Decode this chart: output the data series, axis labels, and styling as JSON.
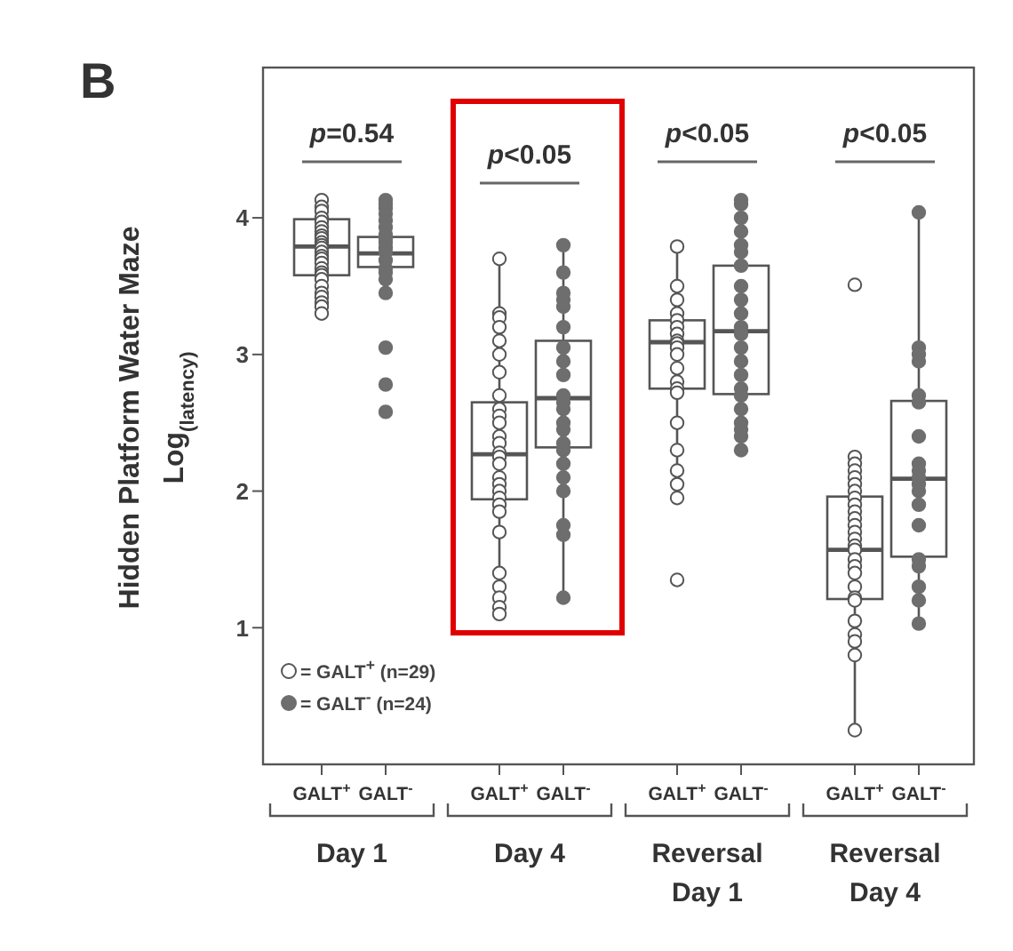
{
  "chart_data": {
    "type": "box",
    "title": "B",
    "ylabel": "Hidden Platform Water Maze Log$_{(latency)}$",
    "categories": [
      "Day 1",
      "Day 4",
      "Reversal Day 1",
      "Reversal Day 4"
    ],
    "ylim": [
      0,
      5.1
    ],
    "yticks": [
      1,
      2,
      3,
      4
    ],
    "legend": "bottom left",
    "marker": "circle",
    "series": [
      {
        "type": "box",
        "color": "#555555",
        "boxes": [
          {
            "low": 3.3,
            "q1": 3.58,
            "median": 3.79,
            "q3": 3.99,
            "high": 4.13
          },
          {
            "low": 1.1,
            "q1": 1.94,
            "median": 2.27,
            "q3": 2.65,
            "high": 3.7
          },
          {
            "low": 1.95,
            "q1": 2.75,
            "median": 3.09,
            "q3": 3.25,
            "high": 3.79
          },
          {
            "low": 0.25,
            "q1": 1.21,
            "median": 1.57,
            "q3": 1.96,
            "high": 2.25
          }
        ]
      },
      {
        "type": "box",
        "color": "#555555",
        "boxes": [
          {
            "low": 3.45,
            "q1": 3.64,
            "median": 3.74,
            "q3": 3.86,
            "high": 4.13
          },
          {
            "low": 1.22,
            "q1": 2.32,
            "median": 2.68,
            "q3": 3.1,
            "high": 3.8
          },
          {
            "low": 2.3,
            "q1": 2.71,
            "median": 3.17,
            "q3": 3.65,
            "high": 4.13
          },
          {
            "low": 1.03,
            "q1": 1.52,
            "median": 2.09,
            "q3": 2.66,
            "high": 4.04
          }
        ]
      },
      {
        "type": "scatter",
        "name": "= GALT$^{+}$ (n=29)",
        "color": "#ffffff",
        "x": [
          "Day 1",
          "Day 1",
          "Day 1",
          "Day 1",
          "Day 1",
          "Day 1",
          "Day 1",
          "Day 1",
          "Day 1",
          "Day 1",
          "Day 1",
          "Day 1",
          "Day 1",
          "Day 1",
          "Day 1",
          "Day 1",
          "Day 1",
          "Day 1",
          "Day 1",
          "Day 1",
          "Day 1",
          "Day 1",
          "Day 1",
          "Day 1",
          "Day 1",
          "Day 1",
          "Day 4",
          "Day 4",
          "Day 4",
          "Day 4",
          "Day 4",
          "Day 4",
          "Day 4",
          "Day 4",
          "Day 4",
          "Day 4",
          "Day 4",
          "Day 4",
          "Day 4",
          "Day 4",
          "Day 4",
          "Day 4",
          "Day 4",
          "Day 4",
          "Day 4",
          "Day 4",
          "Day 4",
          "Day 4",
          "Day 4",
          "Day 4",
          "Day 4",
          "Day 4",
          "Day 4",
          "Day 4",
          "Reversal Day 1",
          "Reversal Day 1",
          "Reversal Day 1",
          "Reversal Day 1",
          "Reversal Day 1",
          "Reversal Day 1",
          "Reversal Day 1",
          "Reversal Day 1",
          "Reversal Day 1",
          "Reversal Day 1",
          "Reversal Day 1",
          "Reversal Day 1",
          "Reversal Day 1",
          "Reversal Day 1",
          "Reversal Day 1",
          "Reversal Day 1",
          "Reversal Day 1",
          "Reversal Day 1",
          "Reversal Day 1",
          "Reversal Day 1",
          "Reversal Day 1",
          "Reversal Day 4",
          "Reversal Day 4",
          "Reversal Day 4",
          "Reversal Day 4",
          "Reversal Day 4",
          "Reversal Day 4",
          "Reversal Day 4",
          "Reversal Day 4",
          "Reversal Day 4",
          "Reversal Day 4",
          "Reversal Day 4",
          "Reversal Day 4",
          "Reversal Day 4",
          "Reversal Day 4",
          "Reversal Day 4",
          "Reversal Day 4",
          "Reversal Day 4",
          "Reversal Day 4",
          "Reversal Day 4",
          "Reversal Day 4",
          "Reversal Day 4",
          "Reversal Day 4",
          "Reversal Day 4",
          "Reversal Day 4",
          "Reversal Day 4",
          "Reversal Day 4",
          "Reversal Day 4"
        ],
        "values": [
          4.13,
          4.08,
          4.05,
          4.0,
          3.97,
          3.93,
          3.9,
          3.87,
          3.85,
          3.82,
          3.8,
          3.78,
          3.75,
          3.72,
          3.7,
          3.67,
          3.63,
          3.6,
          3.58,
          3.55,
          3.5,
          3.45,
          3.42,
          3.38,
          3.35,
          3.3,
          3.7,
          3.3,
          3.27,
          3.2,
          3.1,
          3.0,
          2.87,
          2.7,
          2.6,
          2.55,
          2.5,
          2.4,
          2.35,
          2.28,
          2.25,
          2.2,
          2.1,
          2.05,
          2.0,
          1.95,
          1.9,
          1.85,
          1.7,
          1.4,
          1.3,
          1.22,
          1.15,
          1.1,
          3.79,
          3.5,
          3.4,
          3.3,
          3.25,
          3.2,
          3.15,
          3.1,
          3.08,
          3.05,
          3.0,
          2.9,
          2.8,
          2.75,
          2.72,
          2.5,
          2.3,
          2.15,
          2.05,
          1.95,
          1.35,
          3.51,
          2.25,
          2.2,
          2.15,
          2.1,
          2.05,
          2.0,
          1.95,
          1.9,
          1.85,
          1.8,
          1.75,
          1.7,
          1.65,
          1.6,
          1.57,
          1.5,
          1.45,
          1.4,
          1.3,
          1.22,
          1.2,
          1.05,
          0.95,
          0.9,
          0.8,
          0.25
        ]
      },
      {
        "type": "scatter",
        "name": "= GALT$^{-}$ (n=24)",
        "color": "#6e6e6e",
        "x": [
          "Day 1",
          "Day 1",
          "Day 1",
          "Day 1",
          "Day 1",
          "Day 1",
          "Day 1",
          "Day 1",
          "Day 1",
          "Day 1",
          "Day 1",
          "Day 1",
          "Day 1",
          "Day 1",
          "Day 1",
          "Day 1",
          "Day 1",
          "Day 1",
          "Day 1",
          "Day 4",
          "Day 4",
          "Day 4",
          "Day 4",
          "Day 4",
          "Day 4",
          "Day 4",
          "Day 4",
          "Day 4",
          "Day 4",
          "Day 4",
          "Day 4",
          "Day 4",
          "Day 4",
          "Day 4",
          "Day 4",
          "Day 4",
          "Day 4",
          "Day 4",
          "Day 4",
          "Day 4",
          "Day 4",
          "Reversal Day 1",
          "Reversal Day 1",
          "Reversal Day 1",
          "Reversal Day 1",
          "Reversal Day 1",
          "Reversal Day 1",
          "Reversal Day 1",
          "Reversal Day 1",
          "Reversal Day 1",
          "Reversal Day 1",
          "Reversal Day 1",
          "Reversal Day 1",
          "Reversal Day 1",
          "Reversal Day 1",
          "Reversal Day 1",
          "Reversal Day 1",
          "Reversal Day 1",
          "Reversal Day 1",
          "Reversal Day 1",
          "Reversal Day 1",
          "Reversal Day 1",
          "Reversal Day 1",
          "Reversal Day 4",
          "Reversal Day 4",
          "Reversal Day 4",
          "Reversal Day 4",
          "Reversal Day 4",
          "Reversal Day 4",
          "Reversal Day 4",
          "Reversal Day 4",
          "Reversal Day 4",
          "Reversal Day 4",
          "Reversal Day 4",
          "Reversal Day 4",
          "Reversal Day 4",
          "Reversal Day 4",
          "Reversal Day 4",
          "Reversal Day 4",
          "Reversal Day 4",
          "Reversal Day 4",
          "Reversal Day 4"
        ],
        "values": [
          4.13,
          4.1,
          4.07,
          4.03,
          3.98,
          3.93,
          3.88,
          3.85,
          3.82,
          3.78,
          3.75,
          3.69,
          3.63,
          3.6,
          3.55,
          3.45,
          3.05,
          2.78,
          2.58,
          3.8,
          3.6,
          3.45,
          3.4,
          3.35,
          3.2,
          3.05,
          2.95,
          2.85,
          2.7,
          2.65,
          2.6,
          2.5,
          2.45,
          2.35,
          2.3,
          2.2,
          2.1,
          2.0,
          1.75,
          1.68,
          1.22,
          4.13,
          4.1,
          4.0,
          3.9,
          3.8,
          3.75,
          3.65,
          3.5,
          3.4,
          3.3,
          3.2,
          3.15,
          3.05,
          2.95,
          2.85,
          2.75,
          2.7,
          2.6,
          2.5,
          2.45,
          2.4,
          2.3,
          4.04,
          3.05,
          3.0,
          2.95,
          2.7,
          2.65,
          2.4,
          2.2,
          2.15,
          2.1,
          2.05,
          2.0,
          1.9,
          1.75,
          1.5,
          1.45,
          1.3,
          1.2,
          1.03
        ]
      }
    ],
    "annotations": [
      "p=0.54",
      "p<0.05",
      "p<0.05",
      "p<0.05",
      "GALT$^{+}$",
      "GALT$^{-}$",
      "GALT$^{+}$",
      "GALT$^{-}$",
      "GALT$^{+}$",
      "GALT$^{-}$",
      "GALT$^{+}$",
      "GALT$^{-}$"
    ]
  }
}
